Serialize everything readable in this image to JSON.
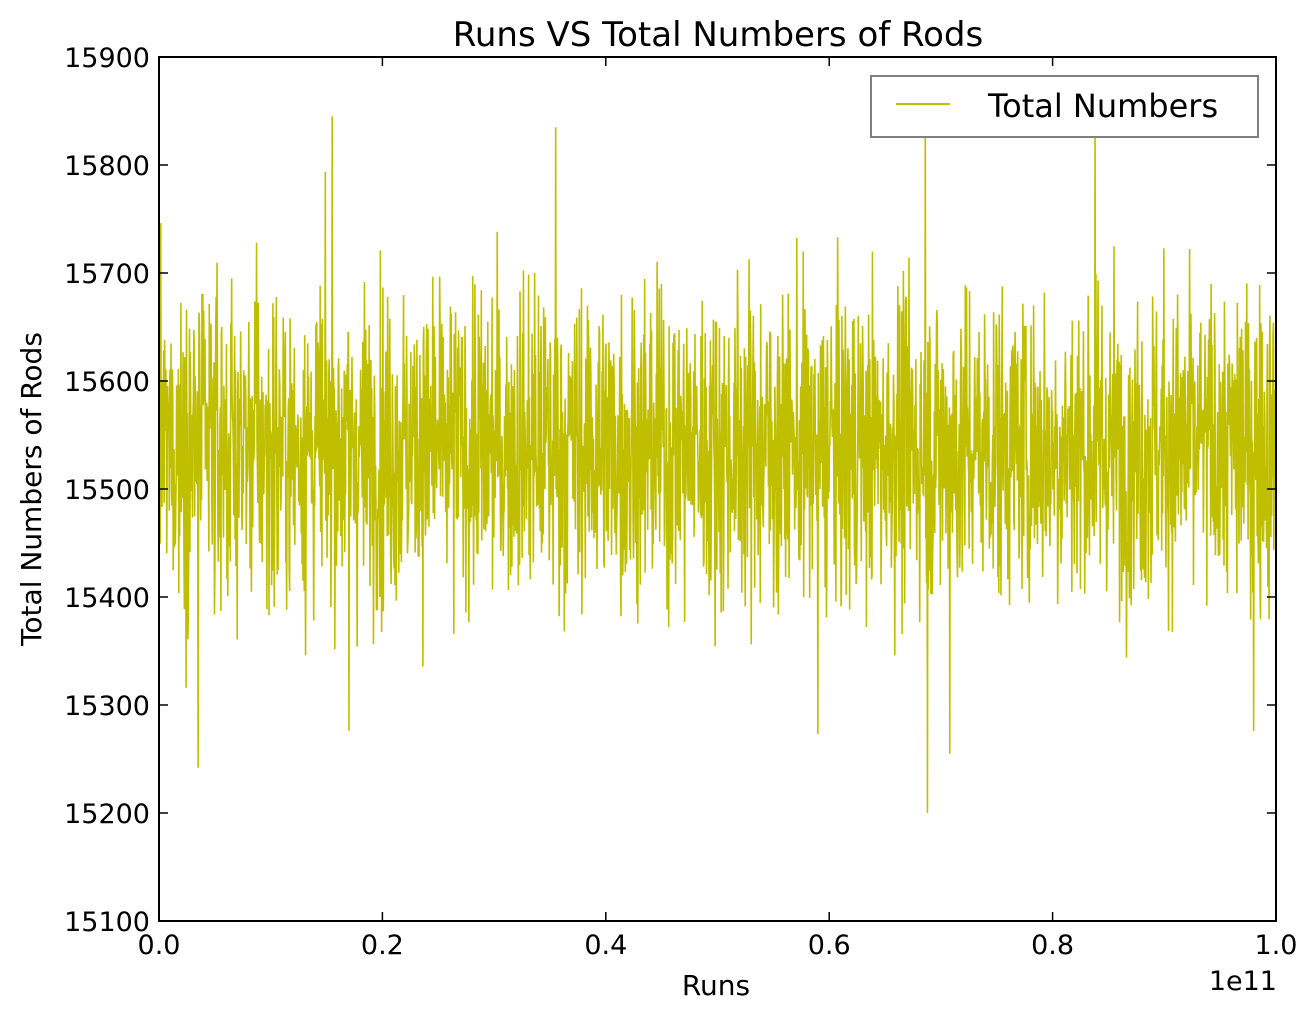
{
  "chart_data": {
    "type": "line",
    "title": "Runs VS Total Numbers of Rods",
    "xlabel": "Runs",
    "ylabel": "Total Numbers of Rods",
    "x_offset_label": "1e11",
    "xlim": [
      0.0,
      1.0
    ],
    "ylim": [
      15100,
      15900
    ],
    "x_ticks": [
      0.0,
      0.2,
      0.4,
      0.6,
      0.8,
      1.0
    ],
    "x_tick_labels": [
      "0.0",
      "0.2",
      "0.4",
      "0.6",
      "0.8",
      "1.0"
    ],
    "y_ticks": [
      15100,
      15200,
      15300,
      15400,
      15500,
      15600,
      15700,
      15800,
      15900
    ],
    "y_tick_labels": [
      "15100",
      "15200",
      "15300",
      "15400",
      "15500",
      "15600",
      "15700",
      "15800",
      "15900"
    ],
    "grid": false,
    "legend": {
      "position": "top-right",
      "entries": [
        "Total Numbers"
      ]
    },
    "colors": {
      "series": "#bfbf00",
      "frame": "#000000",
      "legend_border": "#808080"
    },
    "series": [
      {
        "name": "Total Numbers",
        "mean": 15540,
        "x_range": [
          0.0,
          1.0
        ],
        "notable_points": [
          {
            "x": 0.035,
            "y": 15242
          },
          {
            "x": 0.155,
            "y": 15845
          },
          {
            "x": 0.17,
            "y": 15276
          },
          {
            "x": 0.355,
            "y": 15835
          },
          {
            "x": 0.59,
            "y": 15273
          },
          {
            "x": 0.686,
            "y": 15838
          },
          {
            "x": 0.688,
            "y": 15200
          },
          {
            "x": 0.708,
            "y": 15255
          },
          {
            "x": 0.838,
            "y": 15838
          },
          {
            "x": 0.98,
            "y": 15276
          },
          {
            "x": 1.0,
            "y": 15830
          }
        ]
      }
    ]
  }
}
